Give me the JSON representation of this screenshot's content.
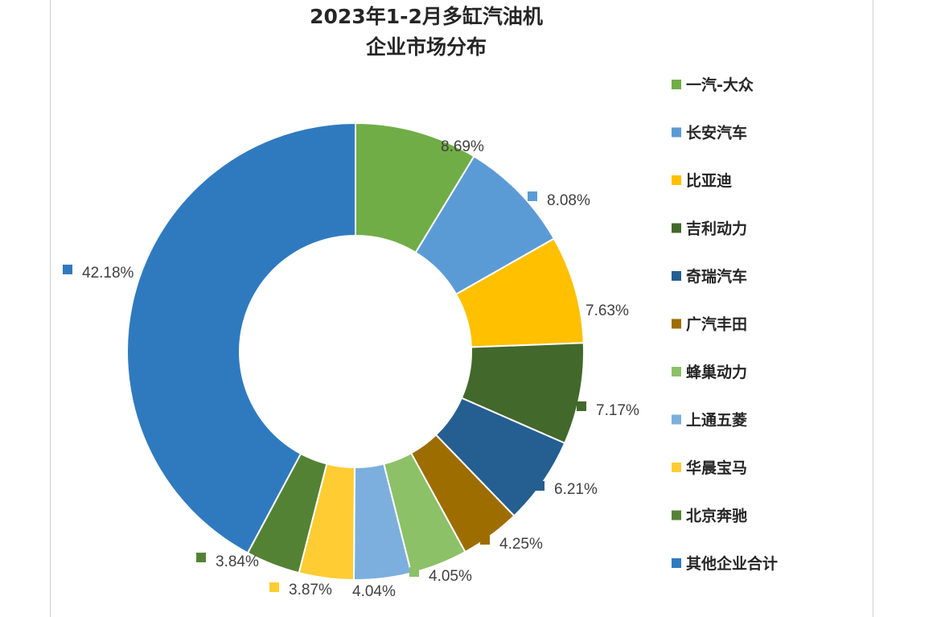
{
  "chart_data": {
    "type": "donut",
    "title_lines": [
      "2023年1-2月多缸汽油机",
      "企业市场分布"
    ],
    "legend_position": "right",
    "series": [
      {
        "name": "一汽-大众",
        "value": 8.69,
        "label": "8.69%",
        "color": "#70ad47"
      },
      {
        "name": "长安汽车",
        "value": 8.08,
        "label": "8.08%",
        "color": "#5b9bd5"
      },
      {
        "name": "比亚迪",
        "value": 7.63,
        "label": "7.63%",
        "color": "#ffc000"
      },
      {
        "name": "吉利动力",
        "value": 7.17,
        "label": "7.17%",
        "color": "#43682b"
      },
      {
        "name": "奇瑞汽车",
        "value": 6.21,
        "label": "6.21%",
        "color": "#255e91"
      },
      {
        "name": "广汽丰田",
        "value": 4.25,
        "label": "4.25%",
        "color": "#9e6d00"
      },
      {
        "name": "蜂巢动力",
        "value": 4.05,
        "label": "4.05%",
        "color": "#8cc168"
      },
      {
        "name": "上通五菱",
        "value": 4.04,
        "label": "4.04%",
        "color": "#7cafdd"
      },
      {
        "name": "华晨宝马",
        "value": 3.87,
        "label": "3.87%",
        "color": "#ffcd33"
      },
      {
        "name": "北京奔驰",
        "value": 3.84,
        "label": "3.84%",
        "color": "#548235"
      },
      {
        "name": "其他企业合计",
        "value": 42.18,
        "label": "42.18%",
        "color": "#2f7abf"
      }
    ]
  }
}
